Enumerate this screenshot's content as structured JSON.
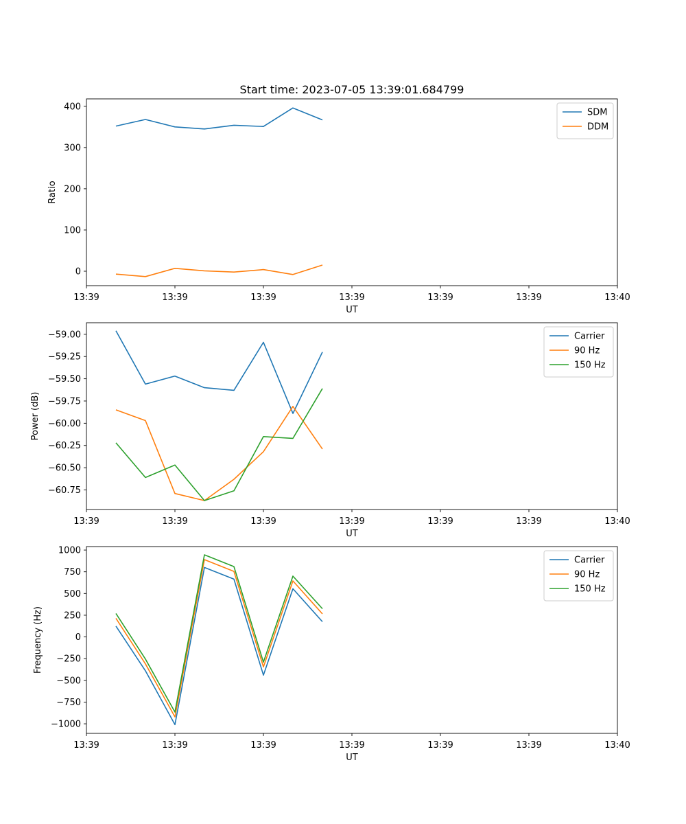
{
  "figure_title": "Start time: 2023-07-05 13:39:01.684799",
  "colors": {
    "blue": "#1f77b4",
    "orange": "#ff7f0e",
    "green": "#2ca02c"
  },
  "chart_data": [
    {
      "type": "line",
      "title": "Start time: 2023-07-05 13:39:01.684799",
      "xlabel": "UT",
      "ylabel": "Ratio",
      "xlim": [
        0,
        9
      ],
      "x": [
        0.5,
        1.0,
        1.5,
        2.0,
        2.5,
        3.0,
        3.5,
        4.0
      ],
      "xticks": [
        0,
        1.5,
        3,
        4.5,
        6,
        7.5,
        9
      ],
      "xtick_labels": [
        "13:39",
        "13:39",
        "13:39",
        "13:39",
        "13:39",
        "13:39",
        "13:40"
      ],
      "ylim": [
        -35,
        418
      ],
      "yticks": [
        0,
        100,
        200,
        300,
        400
      ],
      "ytick_labels": [
        "0",
        "100",
        "200",
        "300",
        "400"
      ],
      "legend_position": "top-right",
      "series": [
        {
          "name": "SDM",
          "color": "#1f77b4",
          "values": [
            352,
            368,
            350,
            345,
            354,
            351,
            396,
            367
          ]
        },
        {
          "name": "DDM",
          "color": "#ff7f0e",
          "values": [
            -7,
            -13,
            7,
            1,
            -2,
            4,
            -8,
            15
          ]
        }
      ]
    },
    {
      "type": "line",
      "title": "",
      "xlabel": "UT",
      "ylabel": "Power (dB)",
      "xlim": [
        0,
        9
      ],
      "x": [
        0.5,
        1.0,
        1.5,
        2.0,
        2.5,
        3.0,
        3.5,
        4.0
      ],
      "xticks": [
        0,
        1.5,
        3,
        4.5,
        6,
        7.5,
        9
      ],
      "xtick_labels": [
        "13:39",
        "13:39",
        "13:39",
        "13:39",
        "13:39",
        "13:39",
        "13:40"
      ],
      "ylim": [
        -60.97,
        -58.87
      ],
      "yticks": [
        -59.0,
        -59.25,
        -59.5,
        -59.75,
        -60.0,
        -60.25,
        -60.5,
        -60.75
      ],
      "ytick_labels": [
        "−59.00",
        "−59.25",
        "−59.50",
        "−59.75",
        "−60.00",
        "−60.25",
        "−60.50",
        "−60.75"
      ],
      "legend_position": "top-right",
      "series": [
        {
          "name": "Carrier",
          "color": "#1f77b4",
          "values": [
            -58.96,
            -59.56,
            -59.47,
            -59.6,
            -59.63,
            -59.09,
            -59.89,
            -59.2
          ]
        },
        {
          "name": "90 Hz",
          "color": "#ff7f0e",
          "values": [
            -59.85,
            -59.97,
            -60.79,
            -60.87,
            -60.63,
            -60.32,
            -59.81,
            -60.29
          ]
        },
        {
          "name": "150 Hz",
          "color": "#2ca02c",
          "values": [
            -60.22,
            -60.61,
            -60.47,
            -60.87,
            -60.76,
            -60.15,
            -60.17,
            -59.61
          ]
        }
      ]
    },
    {
      "type": "line",
      "title": "",
      "xlabel": "UT",
      "ylabel": "Frequency (Hz)",
      "xlim": [
        0,
        9
      ],
      "x": [
        0.5,
        1.0,
        1.5,
        2.0,
        2.5,
        3.0,
        3.5,
        4.0
      ],
      "xticks": [
        0,
        1.5,
        3,
        4.5,
        6,
        7.5,
        9
      ],
      "xtick_labels": [
        "13:39",
        "13:39",
        "13:39",
        "13:39",
        "13:39",
        "13:39",
        "13:40"
      ],
      "ylim": [
        -1110,
        1040
      ],
      "yticks": [
        1000,
        750,
        500,
        250,
        0,
        -250,
        -500,
        -750,
        -1000
      ],
      "ytick_labels": [
        "1000",
        "750",
        "500",
        "250",
        "0",
        "−250",
        "−500",
        "−750",
        "−1000"
      ],
      "legend_position": "top-right",
      "series": [
        {
          "name": "Carrier",
          "color": "#1f77b4",
          "values": [
            125,
            -390,
            -1010,
            800,
            665,
            -440,
            555,
            175
          ]
        },
        {
          "name": "90 Hz",
          "color": "#ff7f0e",
          "values": [
            215,
            -310,
            -920,
            890,
            755,
            -345,
            645,
            265
          ]
        },
        {
          "name": "150 Hz",
          "color": "#2ca02c",
          "values": [
            270,
            -255,
            -865,
            945,
            810,
            -290,
            700,
            325
          ]
        }
      ]
    }
  ]
}
